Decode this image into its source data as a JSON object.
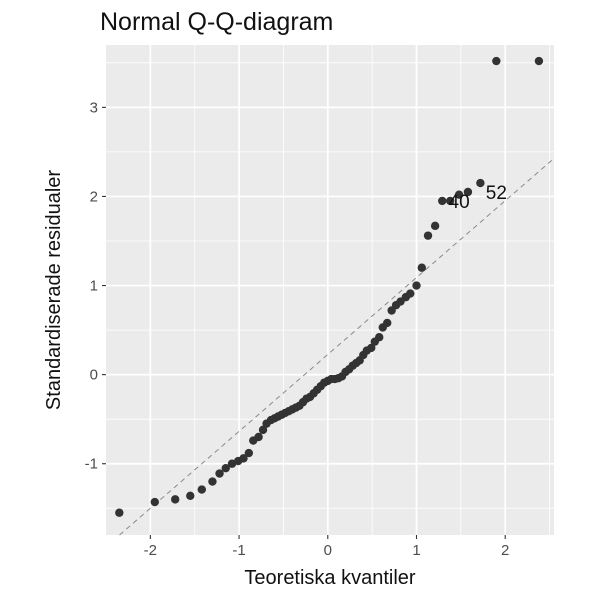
{
  "chart_data": {
    "type": "scatter",
    "title": "Normal Q-Q-diagram",
    "xlabel": "Teoretiska kvantiler",
    "ylabel": "Standardiserade residualer",
    "xlim": [
      -2.5,
      2.55
    ],
    "ylim": [
      -1.8,
      3.7
    ],
    "x_ticks": [
      -2,
      -1,
      0,
      1,
      2
    ],
    "y_ticks": [
      -1,
      0,
      1,
      2,
      3
    ],
    "x_tick_labels": [
      "-2",
      "-1",
      "0",
      "1",
      "2"
    ],
    "y_tick_labels": [
      "-1",
      "0",
      "1",
      "2",
      "3"
    ],
    "grid": true,
    "background_color": "#ebebeb",
    "grid_color": "#ffffff",
    "point_color": "#333333",
    "reference_line": {
      "style": "dashed",
      "color": "#8a8a8a",
      "slope": 0.863,
      "intercept": 0.226
    },
    "x": [
      -2.35,
      -1.95,
      -1.72,
      -1.55,
      -1.42,
      -1.3,
      -1.22,
      -1.15,
      -1.08,
      -1.01,
      -0.95,
      -0.89,
      -0.84,
      -0.78,
      -0.73,
      -0.69,
      -0.64,
      -0.6,
      -0.56,
      -0.52,
      -0.48,
      -0.44,
      -0.4,
      -0.36,
      -0.32,
      -0.28,
      -0.24,
      -0.2,
      -0.16,
      -0.12,
      -0.08,
      -0.04,
      0.0,
      0.04,
      0.08,
      0.12,
      0.16,
      0.2,
      0.24,
      0.28,
      0.32,
      0.36,
      0.4,
      0.44,
      0.49,
      0.53,
      0.58,
      0.62,
      0.67,
      0.72,
      0.77,
      0.82,
      0.88,
      0.93,
      1.0,
      1.06,
      1.13,
      1.21,
      1.29,
      1.38,
      1.48,
      1.58,
      1.72,
      1.9,
      2.38
    ],
    "y": [
      -1.55,
      -1.43,
      -1.4,
      -1.36,
      -1.29,
      -1.2,
      -1.11,
      -1.05,
      -1.0,
      -0.97,
      -0.94,
      -0.88,
      -0.74,
      -0.7,
      -0.62,
      -0.55,
      -0.51,
      -0.49,
      -0.47,
      -0.45,
      -0.43,
      -0.41,
      -0.39,
      -0.37,
      -0.35,
      -0.31,
      -0.27,
      -0.25,
      -0.21,
      -0.17,
      -0.13,
      -0.09,
      -0.07,
      -0.05,
      -0.05,
      -0.04,
      -0.02,
      0.03,
      0.06,
      0.1,
      0.13,
      0.16,
      0.22,
      0.27,
      0.3,
      0.37,
      0.42,
      0.53,
      0.58,
      0.72,
      0.78,
      0.82,
      0.87,
      0.91,
      1.0,
      1.2,
      1.56,
      1.67,
      1.95,
      1.95,
      2.02,
      2.05,
      2.15,
      3.52,
      3.52
    ],
    "point_labels": [
      {
        "text": "40",
        "x": 1.48,
        "y": 1.95
      },
      {
        "text": "52",
        "x": 1.9,
        "y": 2.05
      }
    ]
  }
}
